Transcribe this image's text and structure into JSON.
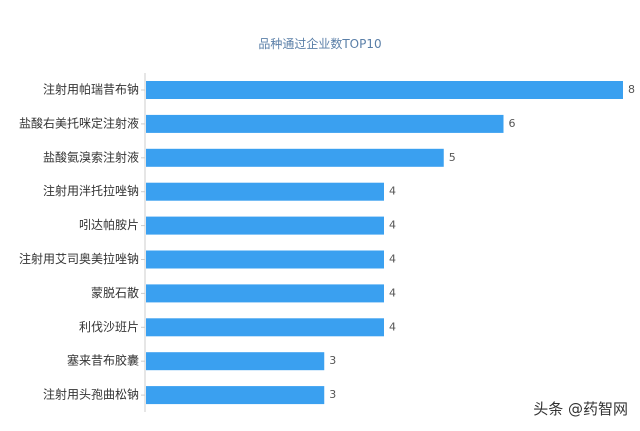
{
  "chart_data": {
    "type": "bar",
    "orientation": "horizontal",
    "title": "品种通过企业数TOP10",
    "categories": [
      "注射用帕瑞昔布钠",
      "盐酸右美托咪定注射液",
      "盐酸氨溴索注射液",
      "注射用泮托拉唑钠",
      "吲达帕胺片",
      "注射用艾司奥美拉唑钠",
      "蒙脱石散",
      "利伐沙班片",
      "塞来昔布胶囊",
      "注射用头孢曲松钠"
    ],
    "values": [
      8,
      6,
      5,
      4,
      4,
      4,
      4,
      4,
      3,
      3
    ],
    "data_labels": [
      "8",
      "6",
      "5",
      "4",
      "4",
      "4",
      "4",
      "4",
      "3",
      "3"
    ],
    "xlim": [
      0,
      8
    ],
    "grid": false,
    "bar_color": "#3aa0f0"
  },
  "watermark": "头条 @药智网"
}
